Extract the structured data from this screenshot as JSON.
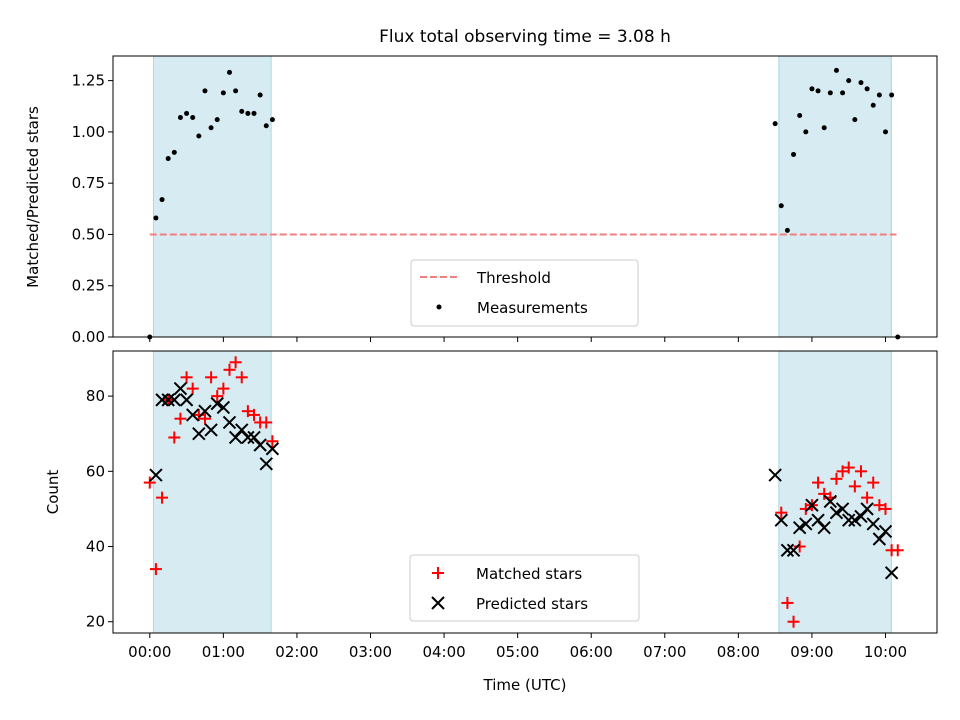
{
  "chart_data": [
    {
      "type": "scatter",
      "title": "Flux total observing time = 3.08 h",
      "ylabel": "Matched/Predicted stars",
      "xlabel": "",
      "ylim": [
        0,
        1.37
      ],
      "xlim_hours": [
        -0.5,
        10.7
      ],
      "yticks": [
        "0.00",
        "0.25",
        "0.50",
        "0.75",
        "1.00",
        "1.25"
      ],
      "shaded_spans_hours": [
        [
          0.05,
          1.65
        ],
        [
          8.55,
          10.08
        ]
      ],
      "shade_color": "#add8e6",
      "threshold": {
        "name": "Threshold",
        "y": 0.5,
        "x_range_hours": [
          0,
          10.15
        ],
        "color": "#f08080",
        "style": "dashed"
      },
      "legend": {
        "placement": "bottom-center",
        "entries": [
          "Threshold",
          "Measurements"
        ]
      },
      "series": [
        {
          "name": "Measurements",
          "marker": "dot",
          "color": "#000000",
          "x": [
            "00:00",
            "00:05",
            "00:10",
            "00:15",
            "00:20",
            "00:25",
            "00:30",
            "00:35",
            "00:40",
            "00:45",
            "00:50",
            "00:55",
            "01:00",
            "01:05",
            "01:10",
            "01:15",
            "01:20",
            "01:25",
            "01:30",
            "01:35",
            "01:40",
            "08:30",
            "08:35",
            "08:40",
            "08:45",
            "08:50",
            "08:55",
            "09:00",
            "09:05",
            "09:10",
            "09:15",
            "09:20",
            "09:25",
            "09:30",
            "09:35",
            "09:40",
            "09:45",
            "09:50",
            "09:55",
            "10:00",
            "10:05",
            "10:10"
          ],
          "y": [
            0.0,
            0.58,
            0.67,
            0.87,
            0.9,
            1.07,
            1.09,
            1.07,
            0.98,
            1.2,
            1.02,
            1.06,
            1.19,
            1.29,
            1.2,
            1.1,
            1.09,
            1.09,
            1.18,
            1.03,
            1.06,
            1.04,
            0.64,
            0.52,
            0.89,
            1.08,
            1.0,
            1.21,
            1.2,
            1.02,
            1.19,
            1.3,
            1.19,
            1.25,
            1.06,
            1.24,
            1.21,
            1.13,
            1.18,
            1.0,
            1.18,
            0.0
          ]
        }
      ]
    },
    {
      "type": "scatter",
      "title": "",
      "ylabel": "Count",
      "xlabel": "Time (UTC)",
      "ylim": [
        17,
        92
      ],
      "xlim_hours": [
        -0.5,
        10.7
      ],
      "yticks": [
        "20",
        "40",
        "60",
        "80"
      ],
      "xticks": [
        "00:00",
        "01:00",
        "02:00",
        "03:00",
        "04:00",
        "05:00",
        "06:00",
        "07:00",
        "08:00",
        "09:00",
        "10:00"
      ],
      "shaded_spans_hours": [
        [
          0.05,
          1.65
        ],
        [
          8.55,
          10.08
        ]
      ],
      "legend": {
        "placement": "bottom-center",
        "entries": [
          "Matched stars",
          "Predicted stars"
        ]
      },
      "series": [
        {
          "name": "Matched stars",
          "marker": "plus",
          "color": "#ff0000",
          "x": [
            "00:00",
            "00:05",
            "00:10",
            "00:15",
            "00:20",
            "00:25",
            "00:30",
            "00:35",
            "00:40",
            "00:45",
            "00:50",
            "00:55",
            "01:00",
            "01:05",
            "01:10",
            "01:15",
            "01:20",
            "01:25",
            "01:30",
            "01:35",
            "01:40",
            "08:35",
            "08:40",
            "08:45",
            "08:50",
            "08:55",
            "09:00",
            "09:05",
            "09:10",
            "09:15",
            "09:20",
            "09:25",
            "09:30",
            "09:35",
            "09:40",
            "09:45",
            "09:50",
            "09:55",
            "10:00",
            "10:05",
            "10:10"
          ],
          "y": [
            57,
            34,
            53,
            79,
            69,
            74,
            85,
            82,
            75,
            74,
            85,
            80,
            82,
            87,
            89,
            85,
            76,
            75,
            73,
            73,
            68,
            49,
            25,
            20,
            40,
            50,
            51,
            57,
            54,
            53,
            58,
            60,
            61,
            56,
            60,
            53,
            57,
            51,
            50,
            39,
            39
          ]
        },
        {
          "name": "Predicted stars",
          "marker": "x",
          "color": "#000000",
          "x": [
            "00:05",
            "00:10",
            "00:15",
            "00:20",
            "00:25",
            "00:30",
            "00:35",
            "00:40",
            "00:45",
            "00:50",
            "00:55",
            "01:00",
            "01:05",
            "01:10",
            "01:15",
            "01:20",
            "01:25",
            "01:30",
            "01:35",
            "01:40",
            "08:30",
            "08:35",
            "08:40",
            "08:45",
            "08:50",
            "08:55",
            "09:00",
            "09:05",
            "09:10",
            "09:15",
            "09:20",
            "09:25",
            "09:30",
            "09:35",
            "09:40",
            "09:45",
            "09:50",
            "09:55",
            "10:00",
            "10:05"
          ],
          "y": [
            59,
            79,
            79,
            79,
            82,
            79,
            75,
            70,
            76,
            71,
            78,
            77,
            73,
            69,
            71,
            69,
            69,
            67,
            62,
            66,
            59,
            47,
            39,
            39,
            45,
            46,
            51,
            47,
            45,
            52,
            49,
            50,
            47,
            47,
            48,
            50,
            46,
            42,
            44,
            33
          ]
        }
      ]
    }
  ]
}
